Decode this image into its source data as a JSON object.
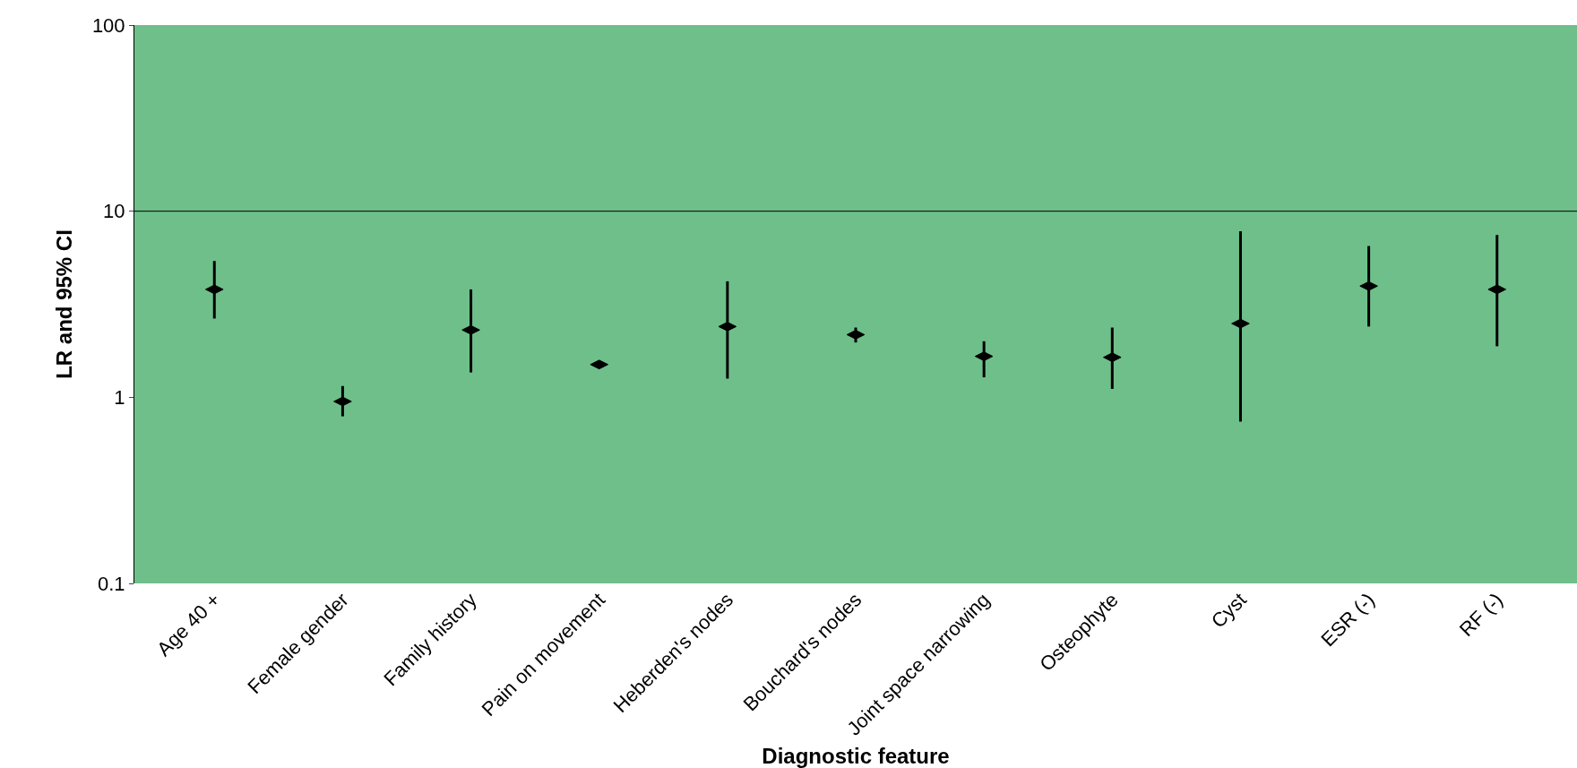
{
  "chart_data": {
    "type": "scatter",
    "xlabel": "Diagnostic feature",
    "ylabel": "LR and 95% CI",
    "categories": [
      "Age 40 +",
      "Female gender",
      "Family history",
      "Pain on movement",
      "Heberden's nodes",
      "Bouchard's nodes",
      "Joint space narrowing",
      "Osteophyte",
      "Cyst",
      "ESR (-)",
      "RF (-)"
    ],
    "series": [
      {
        "color": "#000000",
        "values": [
          3.8,
          0.95,
          2.3,
          1.5,
          2.4,
          2.17,
          1.66,
          1.64,
          2.49,
          3.96,
          3.8
        ],
        "errors": [
          [
            2.65,
            5.4
          ],
          [
            0.79,
            1.15
          ],
          [
            1.36,
            3.8
          ],
          null,
          [
            1.26,
            4.2
          ],
          [
            1.97,
            2.37
          ],
          [
            1.28,
            2.0
          ],
          [
            1.11,
            2.37
          ],
          [
            0.74,
            7.8
          ],
          [
            2.4,
            6.5
          ],
          [
            1.88,
            7.45
          ]
        ]
      }
    ],
    "log": "y",
    "ylim": [
      0.1,
      100
    ],
    "yticks": [
      0.1,
      1,
      10,
      100
    ],
    "ref_lines": [
      {
        "axis": "y",
        "value": 10,
        "color": "#000000"
      }
    ],
    "grid": false,
    "legend": false,
    "marker": "diamond"
  }
}
